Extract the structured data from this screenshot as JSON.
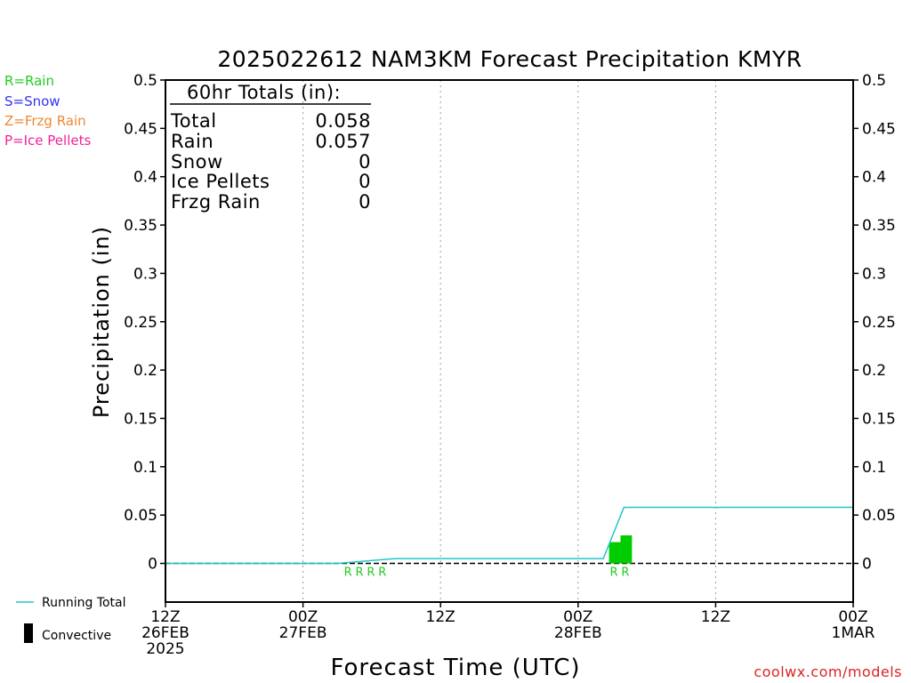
{
  "chart_data": {
    "type": "bar",
    "title": "2025022612 NAM3KM Forecast Precipitation KMYR",
    "xlabel": "Forecast Time (UTC)",
    "ylabel": "Precipitation (in)",
    "ylim": [
      -0.04,
      0.5
    ],
    "yticks": [
      0,
      0.05,
      0.1,
      0.15,
      0.2,
      0.25,
      0.3,
      0.35,
      0.4,
      0.45,
      0.5
    ],
    "ytick_labels": [
      "0",
      "0.05",
      "0.1",
      "0.15",
      "0.2",
      "0.25",
      "0.3",
      "0.35",
      "0.4",
      "0.45",
      "0.5"
    ],
    "xlim_hours": [
      0,
      60
    ],
    "xticks": [
      {
        "hour": 0,
        "lines": [
          "12Z",
          "26FEB",
          "2025"
        ]
      },
      {
        "hour": 12,
        "lines": [
          "00Z",
          "27FEB"
        ]
      },
      {
        "hour": 24,
        "lines": [
          "12Z"
        ]
      },
      {
        "hour": 36,
        "lines": [
          "00Z",
          "28FEB"
        ]
      },
      {
        "hour": 48,
        "lines": [
          "12Z"
        ]
      },
      {
        "hour": 60,
        "lines": [
          "00Z",
          "1MAR"
        ]
      }
    ],
    "grid": "vertical dotted at 12-hour ticks",
    "ptype_legend": [
      {
        "text": "R=Rain",
        "color": "#22cc22"
      },
      {
        "text": "S=Snow",
        "color": "#3333ee"
      },
      {
        "text": "Z=Frzg Rain",
        "color": "#ee8833"
      },
      {
        "text": "P=Ice Pellets",
        "color": "#ee2299"
      }
    ],
    "series": [
      {
        "name": "Running Total",
        "type": "line",
        "color": "#22c8c8",
        "x": [
          0,
          15,
          20,
          38.2,
          40,
          60
        ],
        "y": [
          0,
          0,
          0.005,
          0.005,
          0.058,
          0.058
        ]
      },
      {
        "name": "Rain",
        "type": "bar",
        "color": "#00cc00",
        "bars": [
          {
            "x_start": 38.7,
            "x_end": 39.7,
            "value": 0.022
          },
          {
            "x_start": 39.7,
            "x_end": 40.7,
            "value": 0.029
          }
        ]
      }
    ],
    "ptype_markers": [
      {
        "hour": 16,
        "text": "R"
      },
      {
        "hour": 17,
        "text": "R"
      },
      {
        "hour": 18,
        "text": "R"
      },
      {
        "hour": 19,
        "text": "R"
      },
      {
        "hour": 39.2,
        "text": "R"
      },
      {
        "hour": 40.2,
        "text": "R"
      }
    ],
    "legend": [
      {
        "name": "Running Total",
        "color": "#22c8c8"
      },
      {
        "name": "Convective",
        "color": "#000000"
      }
    ],
    "totals_box": {
      "heading": "60hr Totals (in):",
      "rows": [
        {
          "label": "Total",
          "value": "0.058"
        },
        {
          "label": "Rain",
          "value": "0.057"
        },
        {
          "label": "Snow",
          "value": "0"
        },
        {
          "label": "Ice Pellets",
          "value": "0"
        },
        {
          "label": "Frzg Rain",
          "value": "0"
        }
      ]
    },
    "watermark": "coolwx.com/models"
  }
}
